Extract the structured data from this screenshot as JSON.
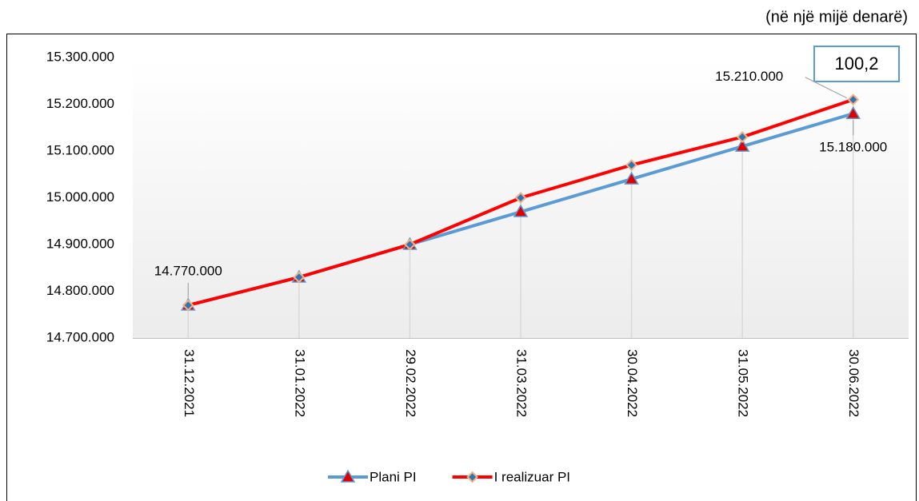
{
  "chart_data": {
    "type": "line",
    "subtitle": "(në një mijë denarë)",
    "annotation": "100,2",
    "categories": [
      "31.12.2021",
      "31.01.2022",
      "29.02.2022",
      "31.03.2022",
      "30.04.2022",
      "31.05.2022",
      "30.06.2022"
    ],
    "series": [
      {
        "name": "Plani PI",
        "color": "#5b9bd5",
        "marker": "triangle",
        "marker_fill": "#e00000",
        "values": [
          14770000,
          14830000,
          14900000,
          14970000,
          15040000,
          15110000,
          15180000
        ],
        "value_labels": [
          "14.770.000",
          null,
          null,
          null,
          null,
          null,
          "15.180.000"
        ]
      },
      {
        "name": "I realizuar PI",
        "color": "#ff0000",
        "marker": "diamond",
        "marker_fill": "#2e75b6",
        "values": [
          14770000,
          14830000,
          14900000,
          15000000,
          15070000,
          15130000,
          15210000
        ],
        "value_labels": [
          null,
          null,
          null,
          null,
          null,
          null,
          "15.210.000"
        ]
      }
    ],
    "ylim": [
      14700000,
      15300000
    ],
    "yticks": [
      {
        "value": 14700000,
        "label": "14.700.000"
      },
      {
        "value": 14800000,
        "label": "14.800.000"
      },
      {
        "value": 14900000,
        "label": "14.900.000"
      },
      {
        "value": 15000000,
        "label": "15.000.000"
      },
      {
        "value": 15100000,
        "label": "15.100.000"
      },
      {
        "value": 15200000,
        "label": "15.200.000"
      },
      {
        "value": 15300000,
        "label": "15.300.000"
      }
    ],
    "grid": false,
    "legend": "bottom"
  }
}
